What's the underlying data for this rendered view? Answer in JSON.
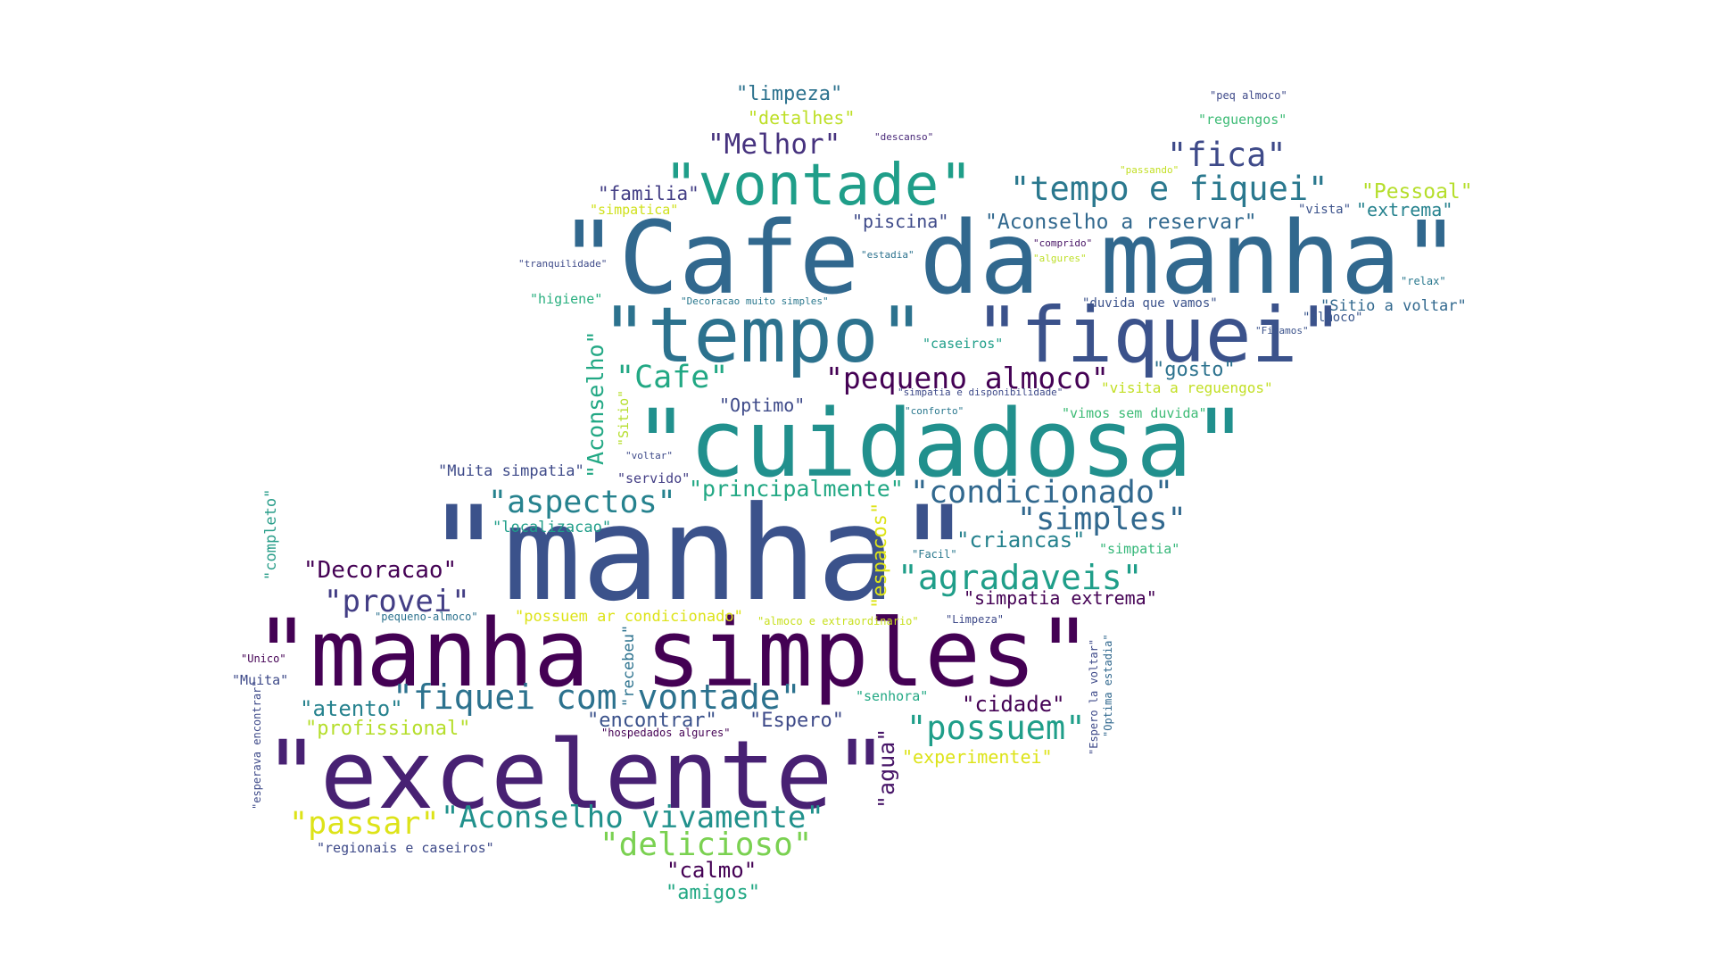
{
  "words": [
    {
      "id": "w1",
      "text": "\"Cafe da manha\"",
      "color": "#31688e"
    },
    {
      "id": "w2",
      "text": "\"manha\"",
      "color": "#3b528b"
    },
    {
      "id": "w3",
      "text": "\"manha simples\"",
      "color": "#440154"
    },
    {
      "id": "w4",
      "text": "\"excelente\"",
      "color": "#482173"
    },
    {
      "id": "w5",
      "text": "\"cuidadosa\"",
      "color": "#21908d"
    },
    {
      "id": "w6",
      "text": "\"tempo\"",
      "color": "#2c728e"
    },
    {
      "id": "w7",
      "text": "\"fiquei\"",
      "color": "#3b528b"
    },
    {
      "id": "w8",
      "text": "\"vontade\"",
      "color": "#1f9e89"
    },
    {
      "id": "w9",
      "text": "\"tempo e fiquei\"",
      "color": "#2a788e"
    },
    {
      "id": "w10",
      "text": "\"fica\"",
      "color": "#3e4a89"
    },
    {
      "id": "w11",
      "text": "\"Melhor\"",
      "color": "#46327e"
    },
    {
      "id": "w12",
      "text": "\"limpeza\"",
      "color": "#2c728e"
    },
    {
      "id": "w13",
      "text": "\"detalhes\"",
      "color": "#bddf26"
    },
    {
      "id": "w14",
      "text": "\"familia\"",
      "color": "#433e85"
    },
    {
      "id": "w15",
      "text": "\"simpatica\"",
      "color": "#d0e11c"
    },
    {
      "id": "w16",
      "text": "\"piscina\"",
      "color": "#3e4a89"
    },
    {
      "id": "w17",
      "text": "\"Aconselho a reservar\"",
      "color": "#31688e"
    },
    {
      "id": "w18",
      "text": "\"Pessoal\"",
      "color": "#b5de2b"
    },
    {
      "id": "w19",
      "text": "\"extrema\"",
      "color": "#26828e"
    },
    {
      "id": "w20",
      "text": "\"vista\"",
      "color": "#3b528b"
    },
    {
      "id": "w21",
      "text": "\"peq almoco\"",
      "color": "#3e4989"
    },
    {
      "id": "w22",
      "text": "\"reguengos\"",
      "color": "#3cbb75"
    },
    {
      "id": "w23",
      "text": "\"descanso\"",
      "color": "#482878"
    },
    {
      "id": "w24",
      "text": "\"passando\"",
      "color": "#c2df23"
    },
    {
      "id": "w25",
      "text": "\"comprido\"",
      "color": "#471365"
    },
    {
      "id": "w26",
      "text": "\"algures\"",
      "color": "#bddf26"
    },
    {
      "id": "w27",
      "text": "\"estadia\"",
      "color": "#2c728e"
    },
    {
      "id": "w28",
      "text": "\"tranquilidade\"",
      "color": "#3e4a89"
    },
    {
      "id": "w29",
      "text": "\"relax\"",
      "color": "#2a788e"
    },
    {
      "id": "w30",
      "text": "\"higiene\"",
      "color": "#29af7f"
    },
    {
      "id": "w31",
      "text": "\"Decoracao muito simples\"",
      "color": "#2a788e"
    },
    {
      "id": "w32",
      "text": "\"duvida que vamos\"",
      "color": "#3b528b"
    },
    {
      "id": "w33",
      "text": "\"Sitio a voltar\"",
      "color": "#31688e"
    },
    {
      "id": "w34",
      "text": "\"almoco\"",
      "color": "#39568c"
    },
    {
      "id": "w35",
      "text": "\"Ficamos\"",
      "color": "#3b528b"
    },
    {
      "id": "w36",
      "text": "\"caseiros\"",
      "color": "#1f9e89"
    },
    {
      "id": "w37",
      "text": "\"Cafe\"",
      "color": "#22a884"
    },
    {
      "id": "w38",
      "text": "\"pequeno almoco\"",
      "color": "#440154"
    },
    {
      "id": "w39",
      "text": "\"gosto\"",
      "color": "#2c728e"
    },
    {
      "id": "w40",
      "text": "\"simpatia e disponibilidade\"",
      "color": "#3e4a89"
    },
    {
      "id": "w41",
      "text": "\"visita a reguengos\"",
      "color": "#c2df23"
    },
    {
      "id": "w42",
      "text": "\"Optimo\"",
      "color": "#3e4a89"
    },
    {
      "id": "w43",
      "text": "\"conforto\"",
      "color": "#2a788e"
    },
    {
      "id": "w44",
      "text": "\"vimos sem duvida\"",
      "color": "#3cbb75"
    },
    {
      "id": "w45",
      "text": "\"Aconselho\"",
      "color": "#22a884"
    },
    {
      "id": "w46",
      "text": "\"Sitio\"",
      "color": "#b5de2b"
    },
    {
      "id": "w47",
      "text": "\"voltar\"",
      "color": "#3e4a89"
    },
    {
      "id": "w48",
      "text": "\"Muita simpatia\"",
      "color": "#3e4a89"
    },
    {
      "id": "w49",
      "text": "\"servido\"",
      "color": "#433e85"
    },
    {
      "id": "w50",
      "text": "\"principalmente\"",
      "color": "#22a884"
    },
    {
      "id": "w51",
      "text": "\"condicionado\"",
      "color": "#31688e"
    },
    {
      "id": "w52",
      "text": "\"aspectos\"",
      "color": "#26828e"
    },
    {
      "id": "w53",
      "text": "\"simples\"",
      "color": "#31688e"
    },
    {
      "id": "w54",
      "text": "\"localizacao\"",
      "color": "#1f9e89"
    },
    {
      "id": "w55",
      "text": "\"completo\"",
      "color": "#2a9e8a"
    },
    {
      "id": "w56",
      "text": "\"espacos\"",
      "color": "#dde318"
    },
    {
      "id": "w57",
      "text": "\"criancas\"",
      "color": "#26828e"
    },
    {
      "id": "w58",
      "text": "\"simpatia\"",
      "color": "#35b779"
    },
    {
      "id": "w59",
      "text": "\"Facil\"",
      "color": "#2a788e"
    },
    {
      "id": "w60",
      "text": "\"Decoracao\"",
      "color": "#440154"
    },
    {
      "id": "w61",
      "text": "\"agradaveis\"",
      "color": "#1f9e89"
    },
    {
      "id": "w62",
      "text": "\"provei\"",
      "color": "#433e85"
    },
    {
      "id": "w63",
      "text": "\"simpatia extrema\"",
      "color": "#440154"
    },
    {
      "id": "w64",
      "text": "\"pequeno-almoco\"",
      "color": "#2c728e"
    },
    {
      "id": "w65",
      "text": "\"possuem ar condicionado\"",
      "color": "#dde318"
    },
    {
      "id": "w66",
      "text": "\"almoco e extraordinario\"",
      "color": "#c8e020"
    },
    {
      "id": "w67",
      "text": "\"Limpeza\"",
      "color": "#3e4a89"
    },
    {
      "id": "w68",
      "text": "\"Unico\"",
      "color": "#440154"
    },
    {
      "id": "w69",
      "text": "\"Muita\"",
      "color": "#3e4a89"
    },
    {
      "id": "w70",
      "text": "\"recebeu\"",
      "color": "#2c728e"
    },
    {
      "id": "w71",
      "text": "\"Espero la voltar\"",
      "color": "#3e4a89"
    },
    {
      "id": "w72",
      "text": "\"Optima estadia\"",
      "color": "#31688e"
    },
    {
      "id": "w73",
      "text": "\"esperava encontrar\"",
      "color": "#3e4a89"
    },
    {
      "id": "w74",
      "text": "\"atento\"",
      "color": "#26828e"
    },
    {
      "id": "w75",
      "text": "\"fiquei com vontade\"",
      "color": "#2c728e"
    },
    {
      "id": "w76",
      "text": "\"senhora\"",
      "color": "#22a884"
    },
    {
      "id": "w77",
      "text": "\"cidade\"",
      "color": "#440154"
    },
    {
      "id": "w78",
      "text": "\"profissional\"",
      "color": "#b5de2b"
    },
    {
      "id": "w79",
      "text": "\"encontrar\"",
      "color": "#3b528b"
    },
    {
      "id": "w80",
      "text": "\"Espero\"",
      "color": "#3e4a89"
    },
    {
      "id": "w81",
      "text": "\"possuem\"",
      "color": "#1f9e89"
    },
    {
      "id": "w82",
      "text": "\"hospedados algures\"",
      "color": "#440154"
    },
    {
      "id": "w83",
      "text": "\"experimentei\"",
      "color": "#dde318"
    },
    {
      "id": "w84",
      "text": "\"agua\"",
      "color": "#481668"
    },
    {
      "id": "w85",
      "text": "\"passar\"",
      "color": "#dde318"
    },
    {
      "id": "w86",
      "text": "\"Aconselho vivamente\"",
      "color": "#21918c"
    },
    {
      "id": "w87",
      "text": "\"regionais e caseiros\"",
      "color": "#3e4a89"
    },
    {
      "id": "w88",
      "text": "\"delicioso\"",
      "color": "#7ad151"
    },
    {
      "id": "w89",
      "text": "\"calmo\"",
      "color": "#440154"
    },
    {
      "id": "w90",
      "text": "\"amigos\"",
      "color": "#22a884"
    }
  ]
}
